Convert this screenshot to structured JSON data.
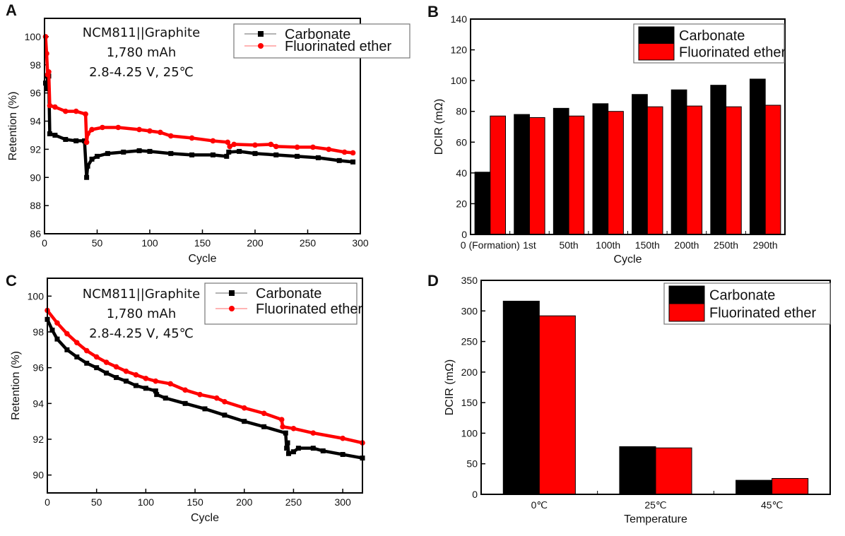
{
  "colors": {
    "Carbonate": "#000000",
    "Fluorinated ether": "#ff0000"
  },
  "chart_data": [
    {
      "panel": "A",
      "type": "line",
      "xlabel": "Cycle",
      "ylabel": "Retention (%)",
      "xlim": [
        0,
        300
      ],
      "ylim": [
        86,
        101.3
      ],
      "xticks": [
        0,
        50,
        100,
        150,
        200,
        250,
        300
      ],
      "yticks": [
        86,
        88,
        90,
        92,
        94,
        96,
        98,
        100
      ],
      "annotation": [
        "NCM811||Graphite",
        "1,780 mAh",
        "2.8-4.25 V, 25℃"
      ],
      "legend": "top-right",
      "grid": false,
      "series": [
        {
          "name": "Carbonate",
          "marker": "square",
          "points": [
            [
              1,
              96.7
            ],
            [
              2,
              96.3
            ],
            [
              3,
              97.2
            ],
            [
              4,
              97.2
            ],
            [
              5,
              93.1
            ],
            [
              10,
              93.0
            ],
            [
              20,
              92.7
            ],
            [
              30,
              92.6
            ],
            [
              38,
              92.6
            ],
            [
              40,
              90.0
            ],
            [
              41,
              90.8
            ],
            [
              45,
              91.3
            ],
            [
              50,
              91.5
            ],
            [
              60,
              91.7
            ],
            [
              75,
              91.8
            ],
            [
              90,
              91.9
            ],
            [
              100,
              91.85
            ],
            [
              120,
              91.7
            ],
            [
              140,
              91.6
            ],
            [
              160,
              91.6
            ],
            [
              173,
              91.5
            ],
            [
              175,
              91.8
            ],
            [
              185,
              91.85
            ],
            [
              200,
              91.7
            ],
            [
              220,
              91.6
            ],
            [
              240,
              91.5
            ],
            [
              260,
              91.4
            ],
            [
              280,
              91.2
            ],
            [
              293,
              91.1
            ]
          ]
        },
        {
          "name": "Fluorinated ether",
          "marker": "circle",
          "points": [
            [
              1,
              100
            ],
            [
              2,
              98.8
            ],
            [
              3,
              97.3
            ],
            [
              4,
              97.5
            ],
            [
              5,
              95.1
            ],
            [
              10,
              95.0
            ],
            [
              20,
              94.7
            ],
            [
              30,
              94.7
            ],
            [
              39,
              94.5
            ],
            [
              40,
              92.5
            ],
            [
              41,
              93.1
            ],
            [
              45,
              93.4
            ],
            [
              55,
              93.55
            ],
            [
              70,
              93.55
            ],
            [
              90,
              93.4
            ],
            [
              100,
              93.3
            ],
            [
              110,
              93.2
            ],
            [
              120,
              92.95
            ],
            [
              140,
              92.8
            ],
            [
              160,
              92.6
            ],
            [
              174,
              92.5
            ],
            [
              176,
              92.2
            ],
            [
              180,
              92.35
            ],
            [
              200,
              92.3
            ],
            [
              215,
              92.35
            ],
            [
              220,
              92.2
            ],
            [
              240,
              92.15
            ],
            [
              255,
              92.15
            ],
            [
              270,
              92.0
            ],
            [
              285,
              91.8
            ],
            [
              293,
              91.75
            ]
          ]
        }
      ]
    },
    {
      "panel": "B",
      "type": "bar",
      "xlabel": "Cycle",
      "ylabel": "DCIR (mΩ)",
      "ylim": [
        0,
        140
      ],
      "yticks": [
        0,
        20,
        40,
        60,
        80,
        100,
        120,
        140
      ],
      "categories": [
        "0 (Formation)",
        "1st",
        "50th",
        "100th",
        "150th",
        "200th",
        "250th",
        "290th"
      ],
      "legend": "top-right",
      "series": [
        {
          "name": "Carbonate",
          "values": [
            40.5,
            78,
            82,
            85,
            91,
            94,
            97,
            101
          ]
        },
        {
          "name": "Fluorinated ether",
          "values": [
            77,
            76,
            77,
            80,
            83,
            83.5,
            83,
            84
          ]
        }
      ]
    },
    {
      "panel": "C",
      "type": "line",
      "xlabel": "Cycle",
      "ylabel": "Retention (%)",
      "xlim": [
        0,
        320
      ],
      "ylim": [
        89,
        101
      ],
      "xticks": [
        0,
        50,
        100,
        150,
        200,
        250,
        300
      ],
      "yticks": [
        90,
        92,
        94,
        96,
        98,
        100
      ],
      "annotation": [
        "NCM811||Graphite",
        "1,780 mAh",
        "2.8-4.25 V, 45℃"
      ],
      "legend": "top-right",
      "grid": false,
      "series": [
        {
          "name": "Carbonate",
          "marker": "square",
          "points": [
            [
              0,
              98.7
            ],
            [
              5,
              98.1
            ],
            [
              10,
              97.6
            ],
            [
              20,
              97.0
            ],
            [
              30,
              96.6
            ],
            [
              40,
              96.25
            ],
            [
              50,
              96.0
            ],
            [
              60,
              95.7
            ],
            [
              70,
              95.45
            ],
            [
              80,
              95.25
            ],
            [
              90,
              95.0
            ],
            [
              100,
              94.85
            ],
            [
              110,
              94.7
            ],
            [
              111,
              94.5
            ],
            [
              120,
              94.3
            ],
            [
              140,
              94.0
            ],
            [
              160,
              93.7
            ],
            [
              180,
              93.35
            ],
            [
              200,
              93.0
            ],
            [
              220,
              92.7
            ],
            [
              242,
              92.35
            ],
            [
              243,
              91.5
            ],
            [
              244,
              91.8
            ],
            [
              245,
              91.2
            ],
            [
              250,
              91.3
            ],
            [
              255,
              91.5
            ],
            [
              270,
              91.5
            ],
            [
              280,
              91.35
            ],
            [
              300,
              91.15
            ],
            [
              320,
              90.95
            ]
          ]
        },
        {
          "name": "Fluorinated ether",
          "marker": "circle",
          "points": [
            [
              0,
              99.2
            ],
            [
              10,
              98.5
            ],
            [
              20,
              97.9
            ],
            [
              30,
              97.4
            ],
            [
              40,
              96.95
            ],
            [
              50,
              96.6
            ],
            [
              60,
              96.3
            ],
            [
              70,
              96.05
            ],
            [
              80,
              95.8
            ],
            [
              90,
              95.6
            ],
            [
              100,
              95.4
            ],
            [
              110,
              95.25
            ],
            [
              125,
              95.1
            ],
            [
              140,
              94.75
            ],
            [
              155,
              94.5
            ],
            [
              172,
              94.3
            ],
            [
              180,
              94.1
            ],
            [
              200,
              93.75
            ],
            [
              220,
              93.45
            ],
            [
              238,
              93.1
            ],
            [
              239,
              92.7
            ],
            [
              250,
              92.6
            ],
            [
              270,
              92.35
            ],
            [
              300,
              92.05
            ],
            [
              320,
              91.8
            ]
          ]
        }
      ]
    },
    {
      "panel": "D",
      "type": "bar",
      "xlabel": "Temperature",
      "ylabel": "DCIR (mΩ)",
      "ylim": [
        0,
        350
      ],
      "yticks": [
        0,
        50,
        100,
        150,
        200,
        250,
        300,
        350
      ],
      "categories": [
        "0℃",
        "25℃",
        "45℃"
      ],
      "legend": "top-right",
      "series": [
        {
          "name": "Carbonate",
          "values": [
            316,
            78,
            23
          ]
        },
        {
          "name": "Fluorinated ether",
          "values": [
            292,
            76,
            26
          ]
        }
      ]
    }
  ]
}
